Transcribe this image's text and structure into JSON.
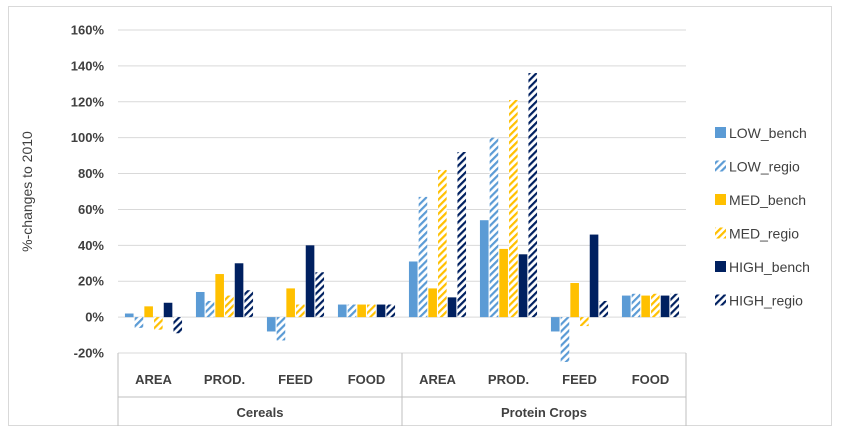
{
  "chart_data": {
    "type": "bar",
    "ylabel": "%-changes to 2010",
    "ylim": [
      -20,
      160
    ],
    "yticks": [
      -20,
      0,
      20,
      40,
      60,
      80,
      100,
      120,
      140,
      160
    ],
    "ytick_labels": [
      "-20%",
      "0%",
      "20%",
      "40%",
      "60%",
      "80%",
      "100%",
      "120%",
      "140%",
      "160%"
    ],
    "grid": true,
    "legend_position": "right",
    "groups": [
      {
        "label": "Cereals",
        "categories": [
          "AREA",
          "PROD.",
          "FEED",
          "FOOD"
        ]
      },
      {
        "label": "Protein Crops",
        "categories": [
          "AREA",
          "PROD.",
          "FEED",
          "FOOD"
        ]
      }
    ],
    "series": [
      {
        "name": "LOW_bench",
        "style": "solid",
        "color": "#5b9bd5",
        "values": [
          2,
          14,
          -8,
          7,
          31,
          54,
          -8,
          12
        ]
      },
      {
        "name": "LOW_regio",
        "style": "hatched",
        "color": "#5b9bd5",
        "values": [
          -6,
          9,
          -13,
          7,
          67,
          100,
          -25,
          13
        ]
      },
      {
        "name": "MED_bench",
        "style": "solid",
        "color": "#ffc000",
        "values": [
          6,
          24,
          16,
          7,
          16,
          38,
          19,
          12
        ]
      },
      {
        "name": "MED_regio",
        "style": "hatched",
        "color": "#ffc000",
        "values": [
          -7,
          12,
          7,
          7,
          82,
          121,
          -5,
          13
        ]
      },
      {
        "name": "HIGH_bench",
        "style": "solid",
        "color": "#002060",
        "values": [
          8,
          30,
          40,
          7,
          11,
          35,
          46,
          12
        ]
      },
      {
        "name": "HIGH_regio",
        "style": "hatched",
        "color": "#002060",
        "values": [
          -9,
          15,
          25,
          7,
          92,
          136,
          9,
          13
        ]
      }
    ]
  }
}
